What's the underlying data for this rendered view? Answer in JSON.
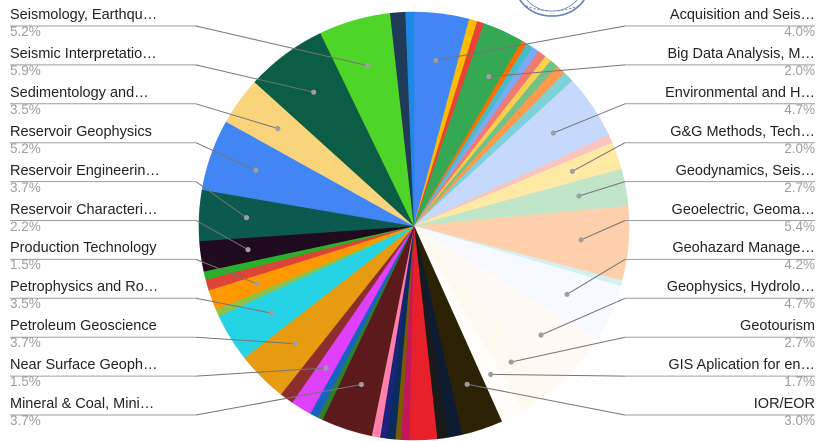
{
  "chart_data": {
    "type": "pie",
    "title": "",
    "legend": "labels around the pie with leader lines",
    "slices": [
      {
        "label": "Acquisition and Seis…",
        "value": 4.0,
        "color": "#4285f4",
        "labeled": true
      },
      {
        "label": "",
        "value": 0.6,
        "color": "#fbbc04"
      },
      {
        "label": "",
        "value": 0.5,
        "color": "#ea4335"
      },
      {
        "label": "",
        "value": 1.0,
        "color": "#34a853"
      },
      {
        "label": "Big Data Analysis, M…",
        "value": 2.0,
        "color": "#34a853",
        "labeled": true
      },
      {
        "label": "",
        "value": 0.4,
        "color": "#ff6d01"
      },
      {
        "label": "",
        "value": 0.5,
        "color": "#46bdc6"
      },
      {
        "label": "",
        "value": 0.5,
        "color": "#7baaf7"
      },
      {
        "label": "",
        "value": 0.6,
        "color": "#f07b72"
      },
      {
        "label": "",
        "value": 0.5,
        "color": "#fcd04f"
      },
      {
        "label": "",
        "value": 0.6,
        "color": "#71c287"
      },
      {
        "label": "",
        "value": 0.7,
        "color": "#ff994d"
      },
      {
        "label": "",
        "value": 0.8,
        "color": "#7ed1d7"
      },
      {
        "label": "Environmental and H…",
        "value": 4.7,
        "color": "#c5d9fc",
        "labeled": true
      },
      {
        "label": "",
        "value": 0.6,
        "color": "#f8c5c0"
      },
      {
        "label": "G&G Methods, Tech…",
        "value": 2.0,
        "color": "#fee9a5",
        "labeled": true
      },
      {
        "label": "Geodynamics, Seis…",
        "value": 2.7,
        "color": "#c0e5c9",
        "labeled": true
      },
      {
        "label": "Geoelectric, Geoma…",
        "value": 5.4,
        "color": "#ffd0ab",
        "labeled": true
      },
      {
        "label": "",
        "value": 0.4,
        "color": "#d4f0f2"
      },
      {
        "label": "Geohazard Manage…",
        "value": 4.2,
        "color": "#f6f9ff",
        "labeled": true
      },
      {
        "label": "Geophysics, Hydrolo…",
        "value": 4.7,
        "color": "#fffaf5",
        "labeled": true
      },
      {
        "label": "Geotourism",
        "value": 2.7,
        "color": "#fffaf0",
        "labeled": true
      },
      {
        "label": "GIS Aplication for en…",
        "value": 1.7,
        "color": "#fffefb",
        "labeled": true
      },
      {
        "label": "IOR/EOR",
        "value": 3.0,
        "color": "#2b2206",
        "labeled": true
      },
      {
        "label": "",
        "value": 1.0,
        "color": "#0d1b33"
      },
      {
        "label": "",
        "value": 0.8,
        "color": "#1a1a1a"
      },
      {
        "label": "",
        "value": 2.0,
        "color": "#e8202a"
      },
      {
        "label": "",
        "value": 0.6,
        "color": "#c2185b"
      },
      {
        "label": "",
        "value": 0.4,
        "color": "#7a5c00"
      },
      {
        "label": "",
        "value": 0.6,
        "color": "#0b2c5a"
      },
      {
        "label": "",
        "value": 0.5,
        "color": "#1a237e"
      },
      {
        "label": "",
        "value": 0.6,
        "color": "#ff80ab"
      },
      {
        "label": "Mineral & Coal, Mini…",
        "value": 3.7,
        "color": "#5c1a1a",
        "labeled": true
      },
      {
        "label": "",
        "value": 0.4,
        "color": "#2e7d32"
      },
      {
        "label": "",
        "value": 0.6,
        "color": "#1565c0"
      },
      {
        "label": "Near Surface Geoph…",
        "value": 1.5,
        "color": "#e040fb",
        "labeled": true
      },
      {
        "label": "",
        "value": 1.0,
        "color": "#8d2e2e"
      },
      {
        "label": "Petroleum Geoscience",
        "value": 3.7,
        "color": "#e69b10",
        "labeled": true
      },
      {
        "label": "Petrophysics and Ro…",
        "value": 3.5,
        "color": "#26d3e5",
        "labeled": true
      },
      {
        "label": "",
        "value": 0.5,
        "color": "#8bc34a"
      },
      {
        "label": "Production Technology",
        "value": 1.5,
        "color": "#ff9800",
        "labeled": true
      },
      {
        "label": "",
        "value": 0.8,
        "color": "#db4437"
      },
      {
        "label": "",
        "value": 0.6,
        "color": "#2bb02b"
      },
      {
        "label": "Reservoir Characteri…",
        "value": 2.2,
        "color": "#1f0a1e",
        "labeled": true
      },
      {
        "label": "Reservoir Engineerin…",
        "value": 3.7,
        "color": "#0c5a4f",
        "labeled": true
      },
      {
        "label": "Reservoir Geophysics",
        "value": 5.2,
        "color": "#4285f4",
        "labeled": true
      },
      {
        "label": "Sedimentology and…",
        "value": 3.5,
        "color": "#f9d47a",
        "labeled": true
      },
      {
        "label": "Seismic Interpretatio…",
        "value": 5.9,
        "color": "#0b5d45",
        "labeled": true
      },
      {
        "label": "Seismology, Earthqu…",
        "value": 5.2,
        "color": "#4fd528",
        "labeled": true
      },
      {
        "label": "",
        "value": 1.1,
        "color": "#1f3b57"
      },
      {
        "label": "",
        "value": 0.6,
        "color": "#1e88e5"
      }
    ],
    "left_labels": [
      {
        "name": "Seismology, Earthqu…",
        "pct": "5.2%"
      },
      {
        "name": "Seismic Interpretatio…",
        "pct": "5.9%"
      },
      {
        "name": "Sedimentology and…",
        "pct": "3.5%"
      },
      {
        "name": "Reservoir Geophysics",
        "pct": "5.2%"
      },
      {
        "name": "Reservoir Engineerin…",
        "pct": "3.7%"
      },
      {
        "name": "Reservoir Characteri…",
        "pct": "2.2%"
      },
      {
        "name": "Production Technology",
        "pct": "1.5%"
      },
      {
        "name": "Petrophysics and Ro…",
        "pct": "3.5%"
      },
      {
        "name": "Petroleum Geoscience",
        "pct": "3.7%"
      },
      {
        "name": "Near Surface Geoph…",
        "pct": "1.5%"
      },
      {
        "name": "Mineral & Coal, Mini…",
        "pct": "3.7%"
      }
    ],
    "right_labels": [
      {
        "name": "Acquisition and Seis…",
        "pct": "4.0%"
      },
      {
        "name": "Big Data Analysis, M…",
        "pct": "2.0%"
      },
      {
        "name": "Environmental and H…",
        "pct": "4.7%"
      },
      {
        "name": "G&G Methods, Tech…",
        "pct": "2.0%"
      },
      {
        "name": "Geodynamics, Seis…",
        "pct": "2.7%"
      },
      {
        "name": "Geoelectric, Geoma…",
        "pct": "5.4%"
      },
      {
        "name": "Geohazard Manage…",
        "pct": "4.2%"
      },
      {
        "name": "Geophysics, Hydrolo…",
        "pct": "4.7%"
      },
      {
        "name": "Geotourism",
        "pct": "2.7%"
      },
      {
        "name": "GIS Aplication for en…",
        "pct": "1.7%"
      },
      {
        "name": "IOR/EOR",
        "pct": "3.0%"
      }
    ]
  },
  "watermark": {
    "icon": "seal-icon",
    "color": "#6b7fb8"
  }
}
